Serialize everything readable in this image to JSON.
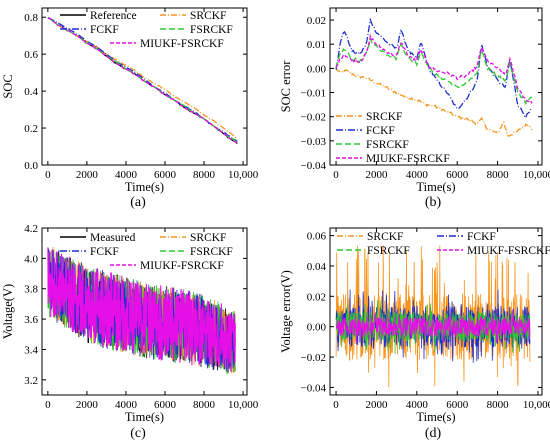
{
  "figure": {
    "panels": [
      {
        "id": "a",
        "label": "(a)"
      },
      {
        "id": "b",
        "label": "(b)"
      },
      {
        "id": "c",
        "label": "(c)"
      },
      {
        "id": "d",
        "label": "(d)"
      }
    ]
  },
  "chart_data": [
    {
      "id": "a",
      "type": "line",
      "xlabel": "Time(s)",
      "ylabel": "SOC",
      "xlim": [
        -300,
        10200
      ],
      "ylim": [
        0.0,
        0.85
      ],
      "xticks": [
        0,
        2000,
        4000,
        6000,
        8000,
        10000
      ],
      "xtick_labels": [
        "0",
        "2000",
        "4000",
        "6000",
        "8000",
        "10,000"
      ],
      "yticks": [
        0.0,
        0.2,
        0.4,
        0.6,
        0.8
      ],
      "ytick_labels": [
        "0.0",
        "0.2",
        "0.4",
        "0.6",
        "0.8"
      ],
      "grid": false,
      "legend": "top",
      "series": [
        {
          "name": "Reference",
          "color": "#000000",
          "dash": "none",
          "x": [
            0,
            500,
            1000,
            1500,
            2000,
            2500,
            3000,
            3500,
            4000,
            4500,
            5000,
            5500,
            6000,
            6500,
            7000,
            7500,
            8000,
            8500,
            9000,
            9500,
            9700
          ],
          "y": [
            0.8,
            0.76,
            0.73,
            0.7,
            0.66,
            0.63,
            0.59,
            0.55,
            0.52,
            0.49,
            0.45,
            0.42,
            0.38,
            0.35,
            0.31,
            0.28,
            0.25,
            0.21,
            0.17,
            0.13,
            0.12
          ]
        },
        {
          "name": "SRCKF",
          "color": "#f7941d",
          "dash": "6,2,1,2",
          "x": [
            0,
            500,
            1000,
            1500,
            2000,
            2500,
            3000,
            3500,
            4000,
            4500,
            5000,
            5500,
            6000,
            6500,
            7000,
            7500,
            8000,
            8500,
            9000,
            9500,
            9700
          ],
          "y": [
            0.8,
            0.76,
            0.73,
            0.7,
            0.67,
            0.64,
            0.6,
            0.57,
            0.54,
            0.51,
            0.47,
            0.44,
            0.41,
            0.37,
            0.34,
            0.31,
            0.27,
            0.24,
            0.2,
            0.16,
            0.14
          ]
        },
        {
          "name": "FCKF",
          "color": "#1f2fcf",
          "dash": "7,2,1,2",
          "x": [
            0,
            500,
            1000,
            1500,
            2000,
            2500,
            3000,
            3500,
            4000,
            4500,
            5000,
            5500,
            6000,
            6500,
            7000,
            7500,
            8000,
            8500,
            9000,
            9500,
            9700
          ],
          "y": [
            0.8,
            0.77,
            0.74,
            0.71,
            0.67,
            0.64,
            0.6,
            0.56,
            0.53,
            0.5,
            0.46,
            0.42,
            0.39,
            0.35,
            0.32,
            0.29,
            0.25,
            0.21,
            0.18,
            0.14,
            0.13
          ]
        },
        {
          "name": "FSRCKF",
          "color": "#2ec82e",
          "dash": "6,3",
          "x": [
            0,
            500,
            1000,
            1500,
            2000,
            2500,
            3000,
            3500,
            4000,
            4500,
            5000,
            5500,
            6000,
            6500,
            7000,
            7500,
            8000,
            8500,
            9000,
            9500,
            9700
          ],
          "y": [
            0.8,
            0.76,
            0.73,
            0.7,
            0.66,
            0.63,
            0.59,
            0.56,
            0.52,
            0.49,
            0.45,
            0.42,
            0.38,
            0.35,
            0.32,
            0.28,
            0.25,
            0.21,
            0.17,
            0.14,
            0.12
          ]
        },
        {
          "name": "MIUKF-FSRCKF",
          "color": "#e60fe6",
          "dash": "4,2",
          "x": [
            0,
            500,
            1000,
            1500,
            2000,
            2500,
            3000,
            3500,
            4000,
            4500,
            5000,
            5500,
            6000,
            6500,
            7000,
            7500,
            8000,
            8500,
            9000,
            9500,
            9700
          ],
          "y": [
            0.8,
            0.76,
            0.73,
            0.7,
            0.66,
            0.63,
            0.59,
            0.55,
            0.52,
            0.49,
            0.45,
            0.42,
            0.38,
            0.35,
            0.31,
            0.28,
            0.25,
            0.21,
            0.17,
            0.13,
            0.12
          ]
        }
      ]
    },
    {
      "id": "b",
      "type": "line",
      "xlabel": "Time(s)",
      "ylabel": "SOC error",
      "xlim": [
        -300,
        10200
      ],
      "ylim": [
        -0.04,
        0.025
      ],
      "xticks": [
        0,
        2000,
        4000,
        6000,
        8000,
        10000
      ],
      "xtick_labels": [
        "0",
        "2000",
        "4000",
        "6000",
        "8000",
        "10,000"
      ],
      "yticks": [
        -0.04,
        -0.03,
        -0.02,
        -0.01,
        0.0,
        0.01,
        0.02
      ],
      "ytick_labels": [
        "−0.04",
        "−0.03",
        "−0.02",
        "−0.01",
        "0.00",
        "0.01",
        "0.02"
      ],
      "grid": false,
      "legend": "bottom-left",
      "series": [
        {
          "name": "SRCKF",
          "color": "#f7941d",
          "dash": "6,2,1,2",
          "x": [
            0,
            200,
            500,
            1000,
            1500,
            2000,
            2500,
            3000,
            3500,
            4000,
            4500,
            5000,
            5500,
            6000,
            6500,
            7000,
            7200,
            7500,
            8000,
            8300,
            8500,
            9000,
            9500,
            9700
          ],
          "y": [
            0.0,
            -0.002,
            -0.001,
            -0.003,
            -0.004,
            -0.006,
            -0.008,
            -0.01,
            -0.012,
            -0.013,
            -0.015,
            -0.016,
            -0.018,
            -0.02,
            -0.021,
            -0.023,
            -0.021,
            -0.025,
            -0.027,
            -0.022,
            -0.028,
            -0.026,
            -0.023,
            -0.025
          ]
        },
        {
          "name": "FCKF",
          "color": "#1f2fcf",
          "dash": "7,2,1,2",
          "x": [
            0,
            200,
            400,
            800,
            1200,
            1500,
            1700,
            2000,
            2500,
            3000,
            3200,
            3600,
            4000,
            4200,
            4600,
            5000,
            5500,
            6000,
            6500,
            7000,
            7200,
            7500,
            8000,
            8400,
            8600,
            9000,
            9400,
            9700
          ],
          "y": [
            0.0,
            0.01,
            0.016,
            0.007,
            0.006,
            0.01,
            0.02,
            0.015,
            0.011,
            0.008,
            0.016,
            0.007,
            0.004,
            0.011,
            0.0,
            -0.005,
            -0.01,
            -0.017,
            -0.012,
            -0.005,
            0.01,
            0.001,
            -0.005,
            -0.008,
            0.004,
            -0.015,
            -0.02,
            -0.017
          ]
        },
        {
          "name": "FSRCKF",
          "color": "#2ec82e",
          "dash": "6,3",
          "x": [
            0,
            200,
            400,
            800,
            1200,
            1500,
            1700,
            2000,
            2500,
            3000,
            3200,
            3600,
            4000,
            4200,
            4600,
            5000,
            5500,
            6000,
            6500,
            7000,
            7200,
            7500,
            8000,
            8400,
            8600,
            9000,
            9400,
            9700
          ],
          "y": [
            0.0,
            0.006,
            0.008,
            0.004,
            0.003,
            0.006,
            0.012,
            0.009,
            0.006,
            0.004,
            0.01,
            0.004,
            0.002,
            0.007,
            0.0,
            -0.003,
            -0.005,
            -0.008,
            -0.006,
            -0.002,
            0.008,
            0.0,
            -0.003,
            -0.005,
            0.002,
            -0.01,
            -0.014,
            -0.012
          ]
        },
        {
          "name": "MIUKF-FSRCKF",
          "color": "#e60fe6",
          "dash": "4,2",
          "x": [
            0,
            200,
            400,
            800,
            1200,
            1500,
            1700,
            2000,
            2500,
            3000,
            3200,
            3600,
            4000,
            4200,
            4600,
            5000,
            5500,
            6000,
            6500,
            7000,
            7200,
            7500,
            8000,
            8400,
            8600,
            9000,
            9400,
            9700
          ],
          "y": [
            0.0,
            0.004,
            0.006,
            0.003,
            0.003,
            0.006,
            0.013,
            0.01,
            0.007,
            0.005,
            0.011,
            0.005,
            0.003,
            0.008,
            0.001,
            -0.001,
            -0.002,
            -0.004,
            -0.003,
            0.001,
            0.009,
            0.003,
            0.0,
            -0.003,
            0.004,
            -0.008,
            -0.013,
            -0.014
          ]
        }
      ]
    },
    {
      "id": "c",
      "type": "line",
      "xlabel": "Time(s)",
      "ylabel": "Voltage(V)",
      "xlim": [
        -300,
        10200
      ],
      "ylim": [
        3.1,
        4.2
      ],
      "xticks": [
        0,
        2000,
        4000,
        6000,
        8000,
        10000
      ],
      "xtick_labels": [
        "0",
        "2000",
        "4000",
        "6000",
        "8000",
        "10,000"
      ],
      "yticks": [
        3.2,
        3.4,
        3.6,
        3.8,
        4.0,
        4.2
      ],
      "ytick_labels": [
        "3.2",
        "3.4",
        "3.6",
        "3.8",
        "4.0",
        "4.2"
      ],
      "grid": false,
      "legend": "top",
      "band": {
        "x": [
          0,
          1000,
          2000,
          3000,
          4000,
          5000,
          6000,
          7000,
          8000,
          9000,
          9600
        ],
        "upper": [
          4.1,
          4.02,
          3.96,
          3.92,
          3.88,
          3.84,
          3.82,
          3.8,
          3.76,
          3.7,
          3.66
        ],
        "lower": [
          3.62,
          3.52,
          3.44,
          3.4,
          3.38,
          3.34,
          3.32,
          3.3,
          3.28,
          3.24,
          3.22
        ]
      },
      "series": [
        {
          "name": "Measured",
          "color": "#000000",
          "dash": "none"
        },
        {
          "name": "SRCKF",
          "color": "#f7941d",
          "dash": "6,2,1,2"
        },
        {
          "name": "FCKF",
          "color": "#1f2fcf",
          "dash": "7,2,1,2"
        },
        {
          "name": "FSRCKF",
          "color": "#2ec82e",
          "dash": "6,3"
        },
        {
          "name": "MIUKF-FSRCKF",
          "color": "#e60fe6",
          "dash": "4,2"
        }
      ]
    },
    {
      "id": "d",
      "type": "line",
      "xlabel": "Time(s)",
      "ylabel": "Voltage error(V)",
      "xlim": [
        -300,
        10200
      ],
      "ylim": [
        -0.045,
        0.065
      ],
      "xticks": [
        0,
        2000,
        4000,
        6000,
        8000,
        10000
      ],
      "xtick_labels": [
        "0",
        "2000",
        "4000",
        "6000",
        "8000",
        "10,000"
      ],
      "yticks": [
        -0.04,
        -0.02,
        0.0,
        0.02,
        0.04,
        0.06
      ],
      "ytick_labels": [
        "−0.04",
        "−0.02",
        "0.00",
        "0.02",
        "0.04",
        "0.06"
      ],
      "grid": false,
      "legend": "top",
      "series": [
        {
          "name": "SRCKF",
          "color": "#f7941d",
          "dash": "6,2,1,2",
          "amplitude": 0.04
        },
        {
          "name": "FCKF",
          "color": "#1f2fcf",
          "dash": "7,2,1,2",
          "amplitude": 0.025
        },
        {
          "name": "FSRCKF",
          "color": "#2ec82e",
          "dash": "6,3",
          "amplitude": 0.018
        },
        {
          "name": "MIUKF-FSRCKF",
          "color": "#e60fe6",
          "dash": "4,2",
          "amplitude": 0.012
        }
      ]
    }
  ]
}
